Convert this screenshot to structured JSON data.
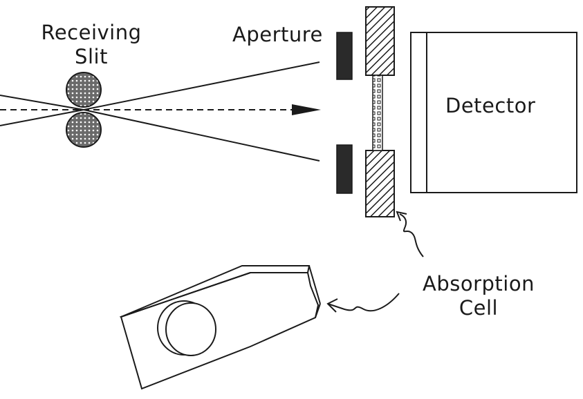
{
  "labels": {
    "receiving_slit_line1": "Receiving",
    "receiving_slit_line2": "Slit",
    "aperture": "Aperture",
    "detector": "Detector",
    "absorption_cell_line1": "Absorption",
    "absorption_cell_line2": "Cell"
  },
  "colors": {
    "ink": "#1a1a1a",
    "background": "#ffffff",
    "slit_fill": "#555555",
    "aperture_fill": "#2a2a2a"
  }
}
